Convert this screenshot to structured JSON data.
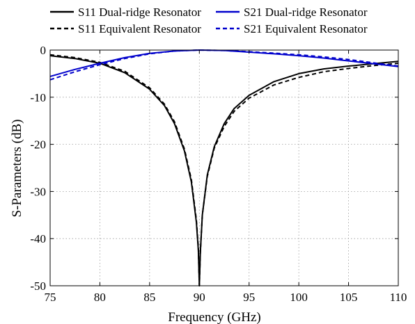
{
  "chart_data": {
    "type": "line",
    "title": "",
    "xlabel": "Frequency (GHz)",
    "ylabel": "S-Parameters (dB)",
    "xlim": [
      75,
      110
    ],
    "ylim": [
      -50,
      0
    ],
    "xticks": [
      75,
      80,
      85,
      90,
      95,
      100,
      105,
      110
    ],
    "yticks": [
      0,
      -10,
      -20,
      -30,
      -40,
      -50
    ],
    "grid": true,
    "legend_position": "top",
    "series": [
      {
        "name": "S11 Dual-ridge Resonator",
        "color": "#000000",
        "style": "solid",
        "x": [
          75,
          77.5,
          80,
          82.5,
          85,
          86.5,
          87.5,
          88.5,
          89.2,
          89.7,
          89.9,
          90,
          90.1,
          90.3,
          90.8,
          91.5,
          92.5,
          93.5,
          95,
          97.5,
          100,
          102.5,
          105,
          107.5,
          110
        ],
        "y": [
          -1.2,
          -1.8,
          -2.8,
          -4.8,
          -8.3,
          -11.8,
          -15.6,
          -21.4,
          -28,
          -36.5,
          -42.5,
          -50,
          -43,
          -35,
          -26.5,
          -20.5,
          -15.6,
          -12.4,
          -9.6,
          -6.7,
          -5,
          -4,
          -3.4,
          -2.9,
          -2.4
        ]
      },
      {
        "name": "S11 Equivalent Resonator",
        "color": "#000000",
        "style": "dashed",
        "x": [
          75,
          77.5,
          80,
          82.5,
          85,
          86.5,
          87.5,
          88.5,
          89.2,
          89.7,
          89.9,
          90,
          90.1,
          90.3,
          90.8,
          91.5,
          92.5,
          93.5,
          95,
          97.5,
          100,
          102.5,
          105,
          107.5,
          110
        ],
        "y": [
          -1,
          -1.6,
          -2.6,
          -4.5,
          -8,
          -11.5,
          -15.2,
          -21,
          -27.5,
          -36,
          -42,
          -50,
          -43,
          -35,
          -26.8,
          -20.8,
          -16.2,
          -13,
          -10.2,
          -7.4,
          -5.8,
          -4.6,
          -3.9,
          -3.3,
          -2.8
        ]
      },
      {
        "name": "S21 Dual-ridge Resonator",
        "color": "#0000cc",
        "style": "solid",
        "x": [
          75,
          77.5,
          80,
          82.5,
          85,
          87.5,
          90,
          92.5,
          95,
          97.5,
          100,
          102.5,
          105,
          107.5,
          110
        ],
        "y": [
          -5.6,
          -4.1,
          -2.8,
          -1.6,
          -0.7,
          -0.2,
          0,
          -0.1,
          -0.45,
          -0.8,
          -1.2,
          -1.7,
          -2.3,
          -2.9,
          -3.5
        ]
      },
      {
        "name": "S21 Equivalent Resonator",
        "color": "#0000cc",
        "style": "dashed",
        "x": [
          75,
          77.5,
          80,
          82.5,
          85,
          87.5,
          90,
          92.5,
          95,
          97.5,
          100,
          102.5,
          105,
          107.5,
          110
        ],
        "y": [
          -6.3,
          -4.6,
          -3.1,
          -1.8,
          -0.8,
          -0.2,
          0,
          -0.1,
          -0.35,
          -0.65,
          -1,
          -1.45,
          -2,
          -2.7,
          -3.4
        ]
      }
    ]
  }
}
